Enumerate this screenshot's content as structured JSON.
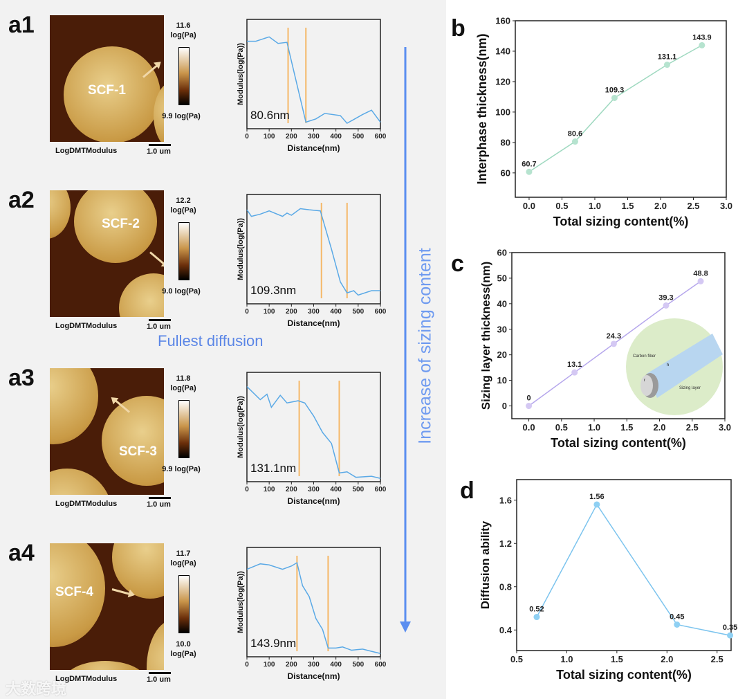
{
  "panels_a": [
    {
      "label": "a1",
      "sample": "SCF-1",
      "cmax": "11.6",
      "cmax_unit": "log(Pa)",
      "cmin": "9.9 log(Pa)",
      "channel": "LogDMTModulus",
      "scale": "1.0 um",
      "thickness": "80.6nm",
      "arrow_deg": -40
    },
    {
      "label": "a2",
      "sample": "SCF-2",
      "cmax": "12.2",
      "cmax_unit": "log(Pa)",
      "cmin": "9.0 log(Pa)",
      "channel": "LogDMTModulus",
      "scale": "1.0 um",
      "thickness": "109.3nm",
      "arrow_deg": 40
    },
    {
      "label": "a3",
      "sample": "SCF-3",
      "cmax": "11.8",
      "cmax_unit": "log(Pa)",
      "cmin": "9.9 log(Pa)",
      "channel": "LogDMTModulus",
      "scale": "1.0 um",
      "thickness": "131.1nm",
      "arrow_deg": -140
    },
    {
      "label": "a4",
      "sample": "SCF-4",
      "cmax": "11.7",
      "cmax_unit": "log(Pa)",
      "cmin": "10.0",
      "cmin_unit": "log(Pa)",
      "channel": "LogDMTModulus",
      "scale": "1.0 um",
      "thickness": "143.9nm",
      "arrow_deg": 15
    }
  ],
  "annotations": {
    "fullest": "Fullest diffusion",
    "trend": "Increase of sizing content",
    "watermark": "大数跨境"
  },
  "inset": {
    "fiber": "Carbon fiber",
    "layer": "Sizing layer",
    "r": "r",
    "h": "h"
  },
  "chart_data": [
    {
      "id": "a1",
      "type": "line",
      "xlabel": "Distance(nm)",
      "ylabel": "Modulus(log(Pa))",
      "xlim": [
        0,
        600
      ],
      "xticks": [
        0,
        100,
        200,
        300,
        400,
        500,
        600
      ],
      "ylim": [
        0,
        1
      ],
      "color": "#5aa9e6",
      "markers": [
        185,
        265
      ],
      "x": [
        0,
        40,
        100,
        140,
        180,
        265,
        310,
        350,
        420,
        450,
        520,
        560,
        600
      ],
      "y": [
        0.8,
        0.8,
        0.84,
        0.78,
        0.79,
        0.06,
        0.09,
        0.14,
        0.12,
        0.05,
        0.13,
        0.17,
        0.06
      ]
    },
    {
      "id": "a2",
      "type": "line",
      "xlabel": "Distance(nm)",
      "ylabel": "Modulus(log(Pa))",
      "xlim": [
        0,
        600
      ],
      "xticks": [
        0,
        100,
        200,
        300,
        400,
        500,
        600
      ],
      "ylim": [
        0,
        1
      ],
      "color": "#5aa9e6",
      "markers": [
        335,
        450
      ],
      "x": [
        0,
        20,
        60,
        100,
        160,
        180,
        200,
        240,
        280,
        330,
        380,
        420,
        450,
        480,
        500,
        560,
        600
      ],
      "y": [
        0.86,
        0.8,
        0.82,
        0.85,
        0.8,
        0.83,
        0.81,
        0.87,
        0.86,
        0.85,
        0.5,
        0.2,
        0.1,
        0.12,
        0.08,
        0.12,
        0.12
      ]
    },
    {
      "id": "a3",
      "type": "line",
      "xlabel": "Distance(nm)",
      "ylabel": "Modulus(log(Pa))",
      "xlim": [
        0,
        600
      ],
      "xticks": [
        0,
        100,
        200,
        300,
        400,
        500,
        600
      ],
      "ylim": [
        0,
        1
      ],
      "color": "#5aa9e6",
      "markers": [
        235,
        415
      ],
      "x": [
        0,
        60,
        90,
        110,
        150,
        180,
        230,
        260,
        300,
        340,
        380,
        415,
        450,
        490,
        560,
        600
      ],
      "y": [
        0.87,
        0.75,
        0.8,
        0.68,
        0.79,
        0.72,
        0.74,
        0.72,
        0.6,
        0.45,
        0.35,
        0.08,
        0.09,
        0.04,
        0.05,
        0.03
      ]
    },
    {
      "id": "a4",
      "type": "line",
      "xlabel": "Distance(nm)",
      "ylabel": "Modulus(log(Pa))",
      "xlim": [
        0,
        600
      ],
      "xticks": [
        0,
        100,
        200,
        300,
        400,
        500,
        600
      ],
      "ylim": [
        0,
        1
      ],
      "color": "#5aa9e6",
      "markers": [
        225,
        365
      ],
      "x": [
        0,
        60,
        100,
        160,
        200,
        225,
        250,
        280,
        310,
        340,
        365,
        400,
        430,
        470,
        520,
        560,
        600
      ],
      "y": [
        0.8,
        0.85,
        0.84,
        0.8,
        0.83,
        0.86,
        0.65,
        0.55,
        0.35,
        0.25,
        0.08,
        0.08,
        0.09,
        0.06,
        0.07,
        0.05,
        0.03
      ]
    },
    {
      "id": "b",
      "label": "b",
      "type": "line",
      "xlabel": "Total sizing content(%)",
      "ylabel": "Interphase thickness(nm)",
      "xlim": [
        -0.21,
        3.0
      ],
      "ylim": [
        44,
        160
      ],
      "xticks": [
        0,
        0.5,
        1,
        1.5,
        2,
        2.5,
        3
      ],
      "yticks": [
        60,
        80,
        100,
        120,
        140,
        160
      ],
      "xdec": 1,
      "ydec": 0,
      "color": "#b6e3cf",
      "line": "#9fd9c0",
      "x": [
        0,
        0.7,
        1.3,
        2.1,
        2.63
      ],
      "y": [
        60.7,
        80.6,
        109.3,
        131.1,
        143.9
      ],
      "labels": [
        "60.7",
        "80.6",
        "109.3",
        "131.1",
        "143.9"
      ]
    },
    {
      "id": "c",
      "label": "c",
      "type": "line",
      "xlabel": "Total sizing content(%)",
      "ylabel": "Sizing layer thickness(nm)",
      "xlim": [
        -0.26,
        3.0
      ],
      "ylim": [
        -5,
        60
      ],
      "xticks": [
        0,
        0.5,
        1,
        1.5,
        2,
        2.5,
        3
      ],
      "yticks": [
        0,
        10,
        20,
        30,
        40,
        50,
        60
      ],
      "xdec": 1,
      "ydec": 0,
      "color": "#d4c8f3",
      "line": "#b5a6ec",
      "x": [
        0,
        0.7,
        1.3,
        2.1,
        2.63
      ],
      "y": [
        0,
        13.1,
        24.3,
        39.3,
        48.8
      ],
      "labels": [
        "0",
        "13.1",
        "24.3",
        "39.3",
        "48.8"
      ]
    },
    {
      "id": "d",
      "label": "d",
      "type": "line",
      "xlabel": "Total sizing content(%)",
      "ylabel": "Diffusion ability",
      "xlim": [
        0.5,
        2.64
      ],
      "ylim": [
        0.21,
        1.79
      ],
      "xticks": [
        0.5,
        1,
        1.5,
        2,
        2.5
      ],
      "yticks": [
        0.4,
        0.8,
        1.2,
        1.6
      ],
      "xdec": 1,
      "ydec": 1,
      "color": "#8fd0f3",
      "line": "#7cc4ee",
      "x": [
        0.7,
        1.3,
        2.1,
        2.63
      ],
      "y": [
        0.52,
        1.56,
        0.45,
        0.35
      ],
      "labels": [
        "0.52",
        "1.56",
        "0.45",
        "0.35"
      ]
    }
  ]
}
